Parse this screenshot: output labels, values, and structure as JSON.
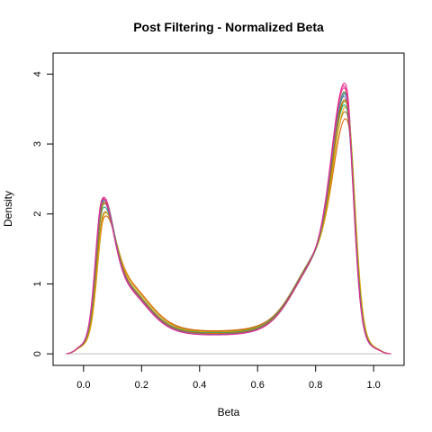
{
  "chart_data": {
    "type": "line",
    "title": "Post Filtering - Normalized Beta",
    "xlabel": "Beta",
    "ylabel": "Density",
    "xlim": [
      -0.105,
      1.105
    ],
    "ylim": [
      -0.165,
      4.3
    ],
    "x_ticks": [
      0.0,
      0.2,
      0.4,
      0.6,
      0.8,
      1.0
    ],
    "x_tick_labels": [
      "0.0",
      "0.2",
      "0.4",
      "0.6",
      "0.8",
      "1.0"
    ],
    "y_ticks": [
      0,
      1,
      2,
      3,
      4
    ],
    "y_tick_labels": [
      "0",
      "1",
      "2",
      "3",
      "4"
    ],
    "legend": "none",
    "grid": false,
    "zero_line": {
      "y": 0,
      "color": "#bebebe"
    },
    "curve_x_range": [
      -0.06,
      1.06
    ],
    "series": [
      {
        "color": "#E7298A",
        "peak1_x": 0.065,
        "peak1_y": 2.35,
        "peak2_x": 0.905,
        "peak2_y": 4.12,
        "mid_min_y": 0.28
      },
      {
        "color": "#D95F02",
        "peak1_x": 0.07,
        "peak1_y": 2.05,
        "peak2_x": 0.91,
        "peak2_y": 3.6,
        "mid_min_y": 0.33
      },
      {
        "color": "#A6761D",
        "peak1_x": 0.068,
        "peak1_y": 2.12,
        "peak2_x": 0.908,
        "peak2_y": 3.7,
        "mid_min_y": 0.32
      },
      {
        "color": "#E6AB02",
        "peak1_x": 0.07,
        "peak1_y": 2.1,
        "peak2_x": 0.91,
        "peak2_y": 3.78,
        "mid_min_y": 0.31
      },
      {
        "color": "#1B9E77",
        "peak1_x": 0.066,
        "peak1_y": 2.2,
        "peak2_x": 0.906,
        "peak2_y": 3.8,
        "mid_min_y": 0.3
      },
      {
        "color": "#66A61E",
        "peak1_x": 0.067,
        "peak1_y": 2.25,
        "peak2_x": 0.907,
        "peak2_y": 3.86,
        "mid_min_y": 0.29
      },
      {
        "color": "#7570B3",
        "peak1_x": 0.064,
        "peak1_y": 2.28,
        "peak2_x": 0.904,
        "peak2_y": 3.92,
        "mid_min_y": 0.285
      },
      {
        "color": "#1B9E77",
        "peak1_x": 0.066,
        "peak1_y": 2.3,
        "peak2_x": 0.906,
        "peak2_y": 3.96,
        "mid_min_y": 0.28
      },
      {
        "color": "#66A61E",
        "peak1_x": 0.065,
        "peak1_y": 2.32,
        "peak2_x": 0.905,
        "peak2_y": 4.0,
        "mid_min_y": 0.275
      },
      {
        "color": "#D95F02",
        "peak1_x": 0.066,
        "peak1_y": 2.27,
        "peak2_x": 0.906,
        "peak2_y": 3.88,
        "mid_min_y": 0.29
      },
      {
        "color": "#E7298A",
        "peak1_x": 0.064,
        "peak1_y": 2.33,
        "peak2_x": 0.904,
        "peak2_y": 4.05,
        "mid_min_y": 0.275
      },
      {
        "color": "#7570B3",
        "peak1_x": 0.065,
        "peak1_y": 2.31,
        "peak2_x": 0.905,
        "peak2_y": 3.98,
        "mid_min_y": 0.28
      },
      {
        "color": "#E7298A",
        "peak1_x": 0.063,
        "peak1_y": 2.34,
        "peak2_x": 0.903,
        "peak2_y": 4.08,
        "mid_min_y": 0.27
      }
    ]
  }
}
